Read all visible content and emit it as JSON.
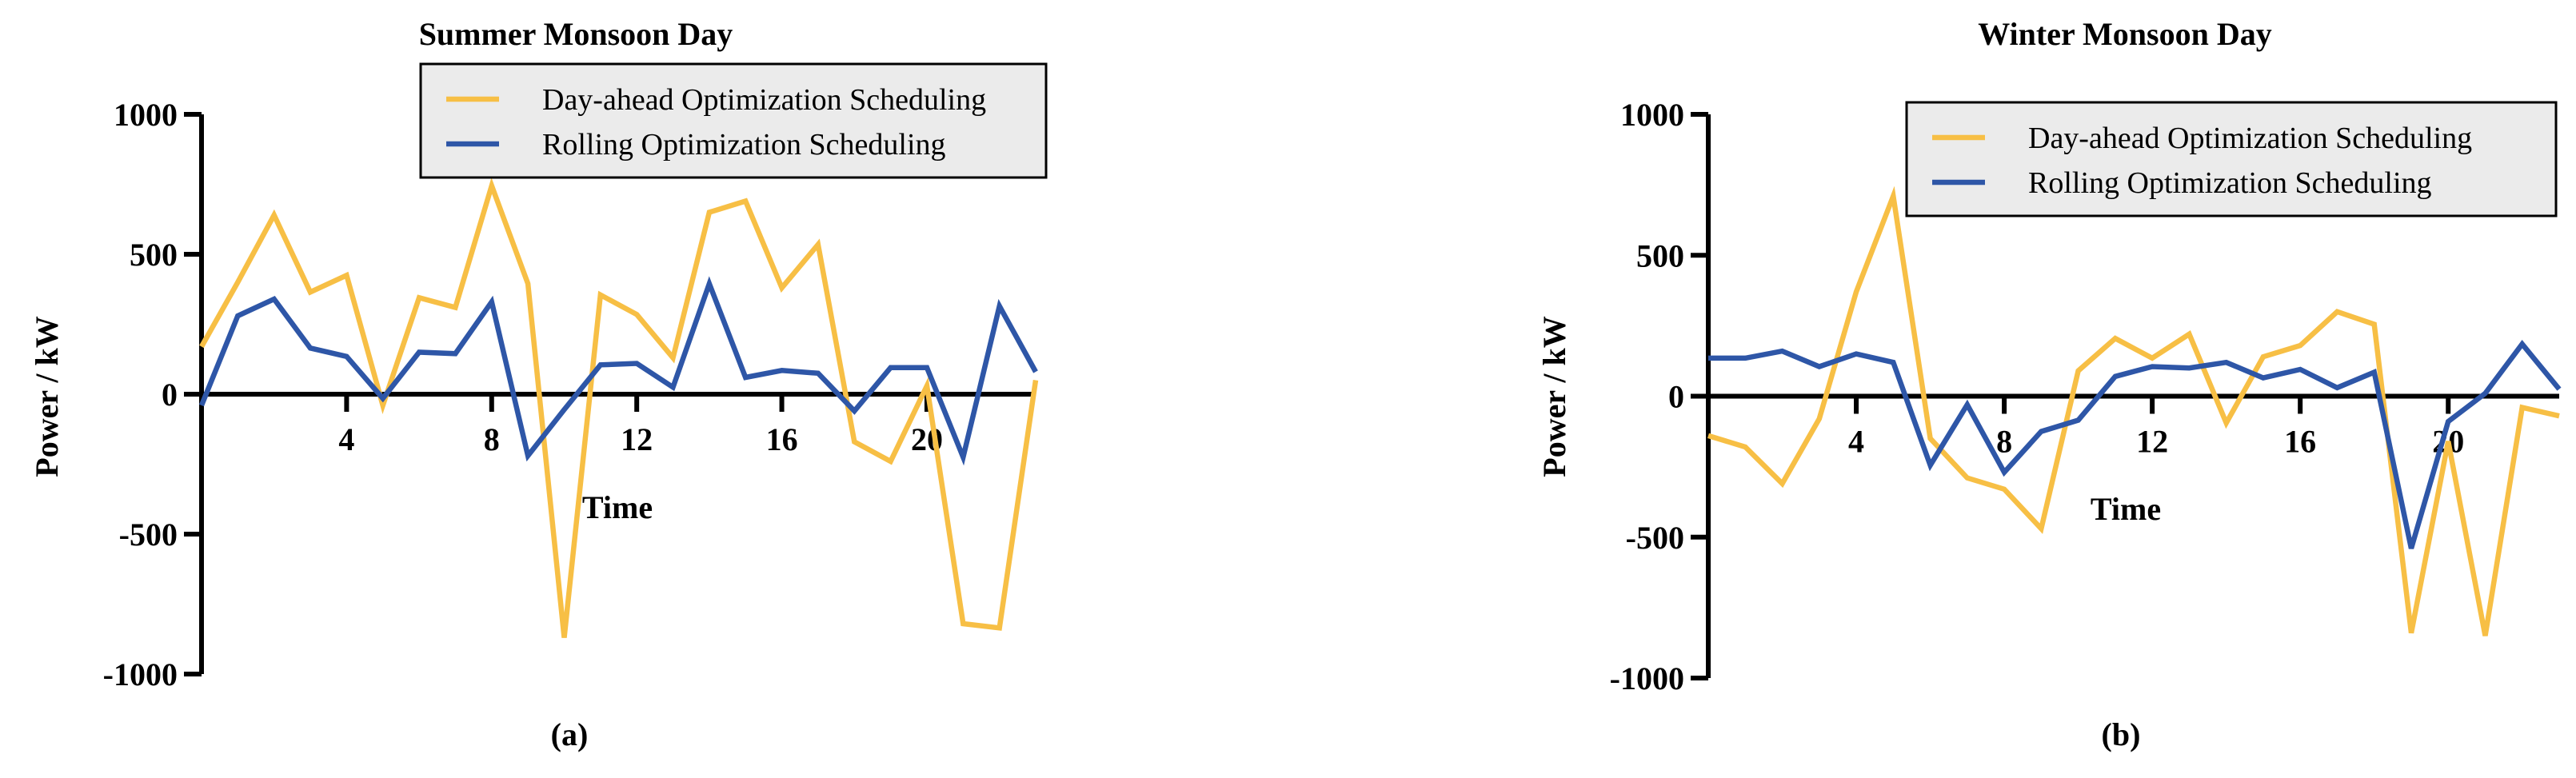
{
  "chart_data": [
    {
      "type": "line",
      "title": "Summer Monsoon Day",
      "panel_label": "(a)",
      "xlabel": "Time",
      "ylabel": "Power / kW",
      "xlim": [
        0,
        23
      ],
      "ylim": [
        -1000,
        1000
      ],
      "xticks": [
        4,
        8,
        12,
        16,
        20
      ],
      "yticks": [
        1000,
        500,
        0,
        -500,
        -1000
      ],
      "legend_position": "top-right",
      "grid": false,
      "x": [
        0,
        1,
        2,
        3,
        4,
        5,
        6,
        7,
        8,
        9,
        10,
        11,
        12,
        13,
        14,
        15,
        16,
        17,
        18,
        19,
        20,
        21,
        22,
        23
      ],
      "series": [
        {
          "name": "Day-ahead Optimization Scheduling",
          "color": "#f7bf45",
          "values": [
            170,
            400,
            640,
            365,
            425,
            -40,
            345,
            310,
            745,
            395,
            -870,
            355,
            285,
            130,
            650,
            690,
            380,
            535,
            -170,
            -240,
            30,
            -820,
            -835,
            50
          ]
        },
        {
          "name": "Rolling Optimization Scheduling",
          "color": "#2e56a7",
          "values": [
            -40,
            280,
            340,
            165,
            135,
            -15,
            150,
            145,
            330,
            -220,
            -55,
            105,
            110,
            25,
            395,
            60,
            85,
            75,
            -60,
            95,
            95,
            -225,
            315,
            80
          ]
        }
      ]
    },
    {
      "type": "line",
      "title": "Winter Monsoon Day",
      "panel_label": "(b)",
      "xlabel": "Time",
      "ylabel": "Power / kW",
      "xlim": [
        0,
        23
      ],
      "ylim": [
        -1000,
        1000
      ],
      "xticks": [
        4,
        8,
        12,
        16,
        20
      ],
      "yticks": [
        1000,
        500,
        0,
        -500,
        -1000
      ],
      "legend_position": "top-right",
      "grid": false,
      "x": [
        0,
        1,
        2,
        3,
        4,
        5,
        6,
        7,
        8,
        9,
        10,
        11,
        12,
        13,
        14,
        15,
        16,
        17,
        18,
        19,
        20,
        21,
        22,
        23
      ],
      "series": [
        {
          "name": "Day-ahead Optimization Scheduling",
          "color": "#f7bf45",
          "values": [
            -140,
            -180,
            -310,
            -80,
            370,
            710,
            -150,
            -290,
            -330,
            -470,
            90,
            205,
            135,
            220,
            -95,
            140,
            180,
            300,
            255,
            -840,
            -160,
            -850,
            -40,
            -70
          ]
        },
        {
          "name": "Rolling Optimization Scheduling",
          "color": "#2e56a7",
          "values": [
            135,
            135,
            160,
            105,
            150,
            120,
            -245,
            -30,
            -270,
            -125,
            -85,
            70,
            105,
            100,
            120,
            65,
            95,
            30,
            85,
            -540,
            -90,
            10,
            185,
            25
          ]
        }
      ]
    }
  ]
}
